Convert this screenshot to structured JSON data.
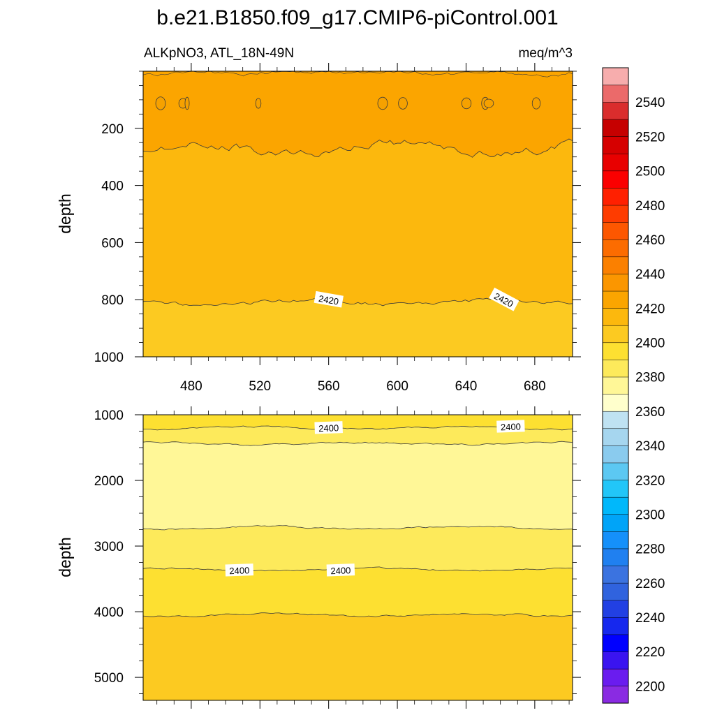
{
  "chart_data": [
    {
      "type": "contour",
      "title": "b.e21.B1850.f09_g17.CMIP6-piControl.001",
      "left_subtitle": "ALKpNO3, ATL_18N-49N",
      "right_subtitle": "meq/m^3",
      "ylabel": "depth",
      "xlim": [
        452,
        702
      ],
      "xticks": [
        480,
        520,
        560,
        600,
        640,
        680
      ],
      "ylim": [
        1000,
        0
      ],
      "yticks": [
        200,
        400,
        600,
        800,
        1000
      ],
      "contour_lines": [
        {
          "level": 2430,
          "approx_depth": [
            80,
            140
          ],
          "note": "small closed cells"
        },
        {
          "level": 2430,
          "approx_depth": 270
        },
        {
          "level": 2420,
          "approx_depth": 810
        }
      ],
      "contour_labels": [
        {
          "text": "2420",
          "x": 560,
          "depth": 800
        },
        {
          "text": "2420",
          "x": 662,
          "depth": 800
        }
      ],
      "fill_bands": [
        {
          "from_depth": 0,
          "to_depth": 270,
          "color": "#fba500"
        },
        {
          "from_depth": 270,
          "to_depth": 810,
          "color": "#fcb80d"
        },
        {
          "from_depth": 810,
          "to_depth": 1000,
          "color": "#fcca21"
        }
      ]
    },
    {
      "type": "contour",
      "ylabel": "depth",
      "xlim": [
        452,
        702
      ],
      "ylim": [
        5350,
        1000
      ],
      "yticks": [
        1000,
        2000,
        3000,
        4000,
        5000
      ],
      "contour_lines": [
        {
          "level": 2400,
          "approx_depth": 1200
        },
        {
          "level": 2390,
          "approx_depth": 1440
        },
        {
          "level": 2390,
          "approx_depth": 2720
        },
        {
          "level": 2400,
          "approx_depth": 3360
        },
        {
          "level": 2410,
          "approx_depth": 4050
        }
      ],
      "contour_labels": [
        {
          "text": "2400",
          "x": 560,
          "depth": 1200
        },
        {
          "text": "2400",
          "x": 666,
          "depth": 1180
        },
        {
          "text": "2400",
          "x": 508,
          "depth": 3370
        },
        {
          "text": "2400",
          "x": 567,
          "depth": 3370
        }
      ],
      "fill_bands": [
        {
          "from_depth": 1000,
          "to_depth": 1200,
          "color": "#fde031"
        },
        {
          "from_depth": 1200,
          "to_depth": 1440,
          "color": "#fdea5b"
        },
        {
          "from_depth": 1440,
          "to_depth": 2720,
          "color": "#fff797"
        },
        {
          "from_depth": 2720,
          "to_depth": 3360,
          "color": "#fdea5b"
        },
        {
          "from_depth": 3360,
          "to_depth": 4050,
          "color": "#fde031"
        },
        {
          "from_depth": 4050,
          "to_depth": 5350,
          "color": "#fcca21"
        }
      ]
    }
  ],
  "colorbar": {
    "levels_min": 2190,
    "levels_max": 2560,
    "step": 10,
    "tick_labels": [
      "2200",
      "2220",
      "2240",
      "2260",
      "2280",
      "2300",
      "2320",
      "2340",
      "2360",
      "2380",
      "2400",
      "2420",
      "2440",
      "2460",
      "2480",
      "2500",
      "2520",
      "2540"
    ],
    "colors_bottom_to_top": [
      "#8a2be2",
      "#6a1cef",
      "#3a14f0",
      "#0000ff",
      "#1628ee",
      "#2240e3",
      "#3063de",
      "#3b73e0",
      "#2080f0",
      "#1590fa",
      "#00a4f8",
      "#00b8fb",
      "#22c6f8",
      "#5cc8f2",
      "#8acbee",
      "#a6d6ef",
      "#bfe2f2",
      "#ffffcc",
      "#fff797",
      "#fdea5b",
      "#fde031",
      "#fcca21",
      "#fcb80d",
      "#fba500",
      "#fb9600",
      "#fb8000",
      "#fc6c00",
      "#fd5700",
      "#fe3c00",
      "#ff2000",
      "#fb0000",
      "#e80000",
      "#d60000",
      "#c60000",
      "#da2d2d",
      "#eb6a6a",
      "#f7adad"
    ]
  }
}
